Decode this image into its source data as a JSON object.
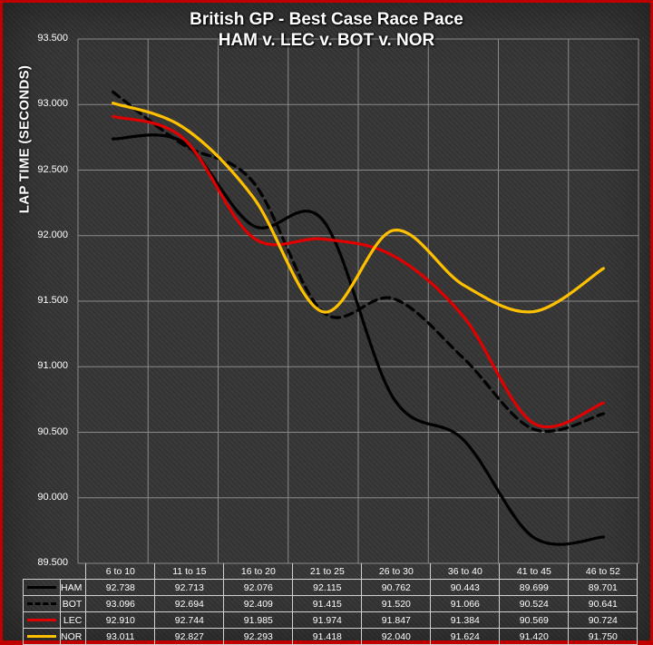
{
  "chart_data": {
    "type": "line",
    "title": "British GP - Best Case Race Pace",
    "subtitle": "HAM v. LEC v. BOT v. NOR",
    "xlabel": "",
    "ylabel": "LAP TIME (SECONDS)",
    "ylim": [
      89.5,
      93.5
    ],
    "yticks": [
      "93.500",
      "93.000",
      "92.500",
      "92.000",
      "91.500",
      "91.000",
      "90.500",
      "90.000",
      "89.500"
    ],
    "categories": [
      "6 to 10",
      "11 to 15",
      "16 to 20",
      "21 to 25",
      "26 to 30",
      "36 to 40",
      "41 to 45",
      "46 to 52"
    ],
    "grid": true,
    "legend": "data table below chart",
    "series": [
      {
        "name": "HAM",
        "color": "#000000",
        "dash": "solid",
        "values": [
          92.738,
          92.713,
          92.076,
          92.115,
          90.762,
          90.443,
          89.699,
          89.701
        ],
        "labels": [
          "92.738",
          "92.713",
          "92.076",
          "92.115",
          "90.762",
          "90.443",
          "89.699",
          "89.701"
        ]
      },
      {
        "name": "BOT",
        "color": "#000000",
        "dash": "dashed",
        "values": [
          93.096,
          92.694,
          92.409,
          91.415,
          91.52,
          91.066,
          90.524,
          90.641
        ],
        "labels": [
          "93.096",
          "92.694",
          "92.409",
          "91.415",
          "91.520",
          "91.066",
          "90.524",
          "90.641"
        ]
      },
      {
        "name": "LEC",
        "color": "#e00000",
        "dash": "solid",
        "values": [
          92.91,
          92.744,
          91.985,
          91.974,
          91.847,
          91.384,
          90.569,
          90.724
        ],
        "labels": [
          "92.910",
          "92.744",
          "91.985",
          "91.974",
          "91.847",
          "91.384",
          "90.569",
          "90.724"
        ]
      },
      {
        "name": "NOR",
        "color": "#ffc000",
        "dash": "solid",
        "values": [
          93.011,
          92.827,
          92.293,
          91.418,
          92.04,
          91.624,
          91.42,
          91.75
        ],
        "labels": [
          "93.011",
          "92.827",
          "92.293",
          "91.418",
          "92.040",
          "91.624",
          "91.420",
          "91.750"
        ]
      }
    ]
  }
}
